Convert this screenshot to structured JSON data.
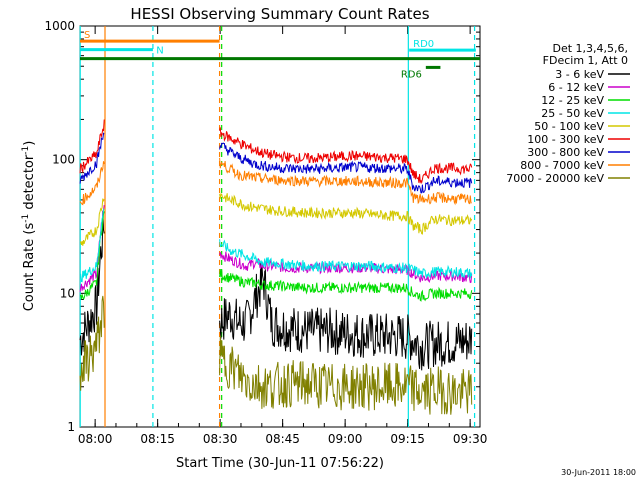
{
  "chart_data": {
    "type": "line",
    "title": "HESSI Observing Summary Count Rates",
    "xlabel": "Start Time (30-Jun-11 07:56:22)",
    "ylabel_main": "Count Rate (s",
    "ylabel_sup1": "-1",
    "ylabel_mid": " detector",
    "ylabel_sup2": "-1",
    "ylabel_end": ")",
    "yscale": "log",
    "ylim": [
      1,
      1000
    ],
    "xlim_minutes": [
      0,
      96
    ],
    "x_ticks": [
      "08:00",
      "08:15",
      "08:30",
      "08:45",
      "09:00",
      "09:15",
      "09:30"
    ],
    "x_tick_minutes": [
      3.633,
      18.633,
      33.633,
      48.633,
      63.633,
      78.633,
      93.633
    ],
    "y_ticks": [
      "1",
      "10",
      "100",
      "1000"
    ],
    "y_tick_values": [
      1,
      10,
      100,
      1000
    ],
    "footer_date": "30-Jun-2011 18:00",
    "legend": {
      "header_1": "Det 1,3,4,5,6,",
      "header_2": "FDecim 1, Att 0"
    },
    "series": [
      {
        "name": "3 - 6 keV",
        "color": "#000000",
        "points": [
          [
            0,
            4.5
          ],
          [
            4,
            8
          ],
          [
            5,
            20
          ],
          [
            5.8,
            35
          ],
          [
            33.5,
            6
          ],
          [
            36,
            7
          ],
          [
            38,
            6
          ],
          [
            40,
            6
          ],
          [
            42,
            9
          ],
          [
            44,
            13
          ],
          [
            46,
            6
          ],
          [
            50,
            5.5
          ],
          [
            55,
            5.2
          ],
          [
            60,
            5.2
          ],
          [
            65,
            5
          ],
          [
            70,
            4.8
          ],
          [
            75,
            4.8
          ],
          [
            78.5,
            4.7
          ],
          [
            80,
            4.5
          ],
          [
            82,
            4
          ],
          [
            85,
            4.2
          ],
          [
            90,
            4.3
          ],
          [
            94,
            4.5
          ]
        ]
      },
      {
        "name": "6 - 12 keV",
        "color": "#cc00cc",
        "points": [
          [
            0,
            11
          ],
          [
            4,
            14
          ],
          [
            5,
            30
          ],
          [
            5.8,
            45
          ],
          [
            33.5,
            20
          ],
          [
            36,
            18
          ],
          [
            38,
            17
          ],
          [
            40,
            16
          ],
          [
            42,
            17
          ],
          [
            44,
            16
          ],
          [
            46,
            16
          ],
          [
            50,
            15.5
          ],
          [
            55,
            15.5
          ],
          [
            60,
            15.5
          ],
          [
            65,
            15.5
          ],
          [
            70,
            15.5
          ],
          [
            75,
            15
          ],
          [
            78.5,
            15
          ],
          [
            80,
            14
          ],
          [
            82,
            13
          ],
          [
            85,
            13.5
          ],
          [
            90,
            13.5
          ],
          [
            94,
            13
          ]
        ]
      },
      {
        "name": "12 - 25 keV",
        "color": "#00dd00",
        "points": [
          [
            0,
            9
          ],
          [
            4,
            12
          ],
          [
            5,
            28
          ],
          [
            5.8,
            40
          ],
          [
            33.5,
            14
          ],
          [
            36,
            13
          ],
          [
            38,
            12.5
          ],
          [
            40,
            12
          ],
          [
            42,
            12
          ],
          [
            44,
            11.5
          ],
          [
            46,
            11.5
          ],
          [
            50,
            11.2
          ],
          [
            55,
            11
          ],
          [
            60,
            11
          ],
          [
            65,
            11
          ],
          [
            70,
            11
          ],
          [
            75,
            11
          ],
          [
            78.5,
            11
          ],
          [
            80,
            10
          ],
          [
            82,
            9.5
          ],
          [
            85,
            10
          ],
          [
            90,
            10
          ],
          [
            94,
            10
          ]
        ]
      },
      {
        "name": "25 - 50 keV",
        "color": "#00e5e5",
        "points": [
          [
            0,
            13
          ],
          [
            4,
            16
          ],
          [
            5,
            30
          ],
          [
            5.8,
            45
          ],
          [
            33.5,
            24
          ],
          [
            36,
            21
          ],
          [
            38,
            20
          ],
          [
            40,
            19
          ],
          [
            42,
            18
          ],
          [
            44,
            17
          ],
          [
            46,
            17
          ],
          [
            50,
            16.5
          ],
          [
            55,
            16
          ],
          [
            60,
            16
          ],
          [
            65,
            16
          ],
          [
            70,
            16
          ],
          [
            75,
            15.5
          ],
          [
            78.5,
            15.5
          ],
          [
            80,
            15
          ],
          [
            82,
            14
          ],
          [
            85,
            14.5
          ],
          [
            90,
            14.5
          ],
          [
            94,
            14
          ]
        ]
      },
      {
        "name": "50 - 100 keV",
        "color": "#d4c800",
        "points": [
          [
            0,
            23
          ],
          [
            4,
            30
          ],
          [
            5,
            42
          ],
          [
            5.8,
            55
          ],
          [
            33.5,
            55
          ],
          [
            36,
            50
          ],
          [
            38,
            48
          ],
          [
            40,
            45
          ],
          [
            42,
            44
          ],
          [
            44,
            43
          ],
          [
            46,
            42
          ],
          [
            50,
            41
          ],
          [
            55,
            40
          ],
          [
            60,
            40
          ],
          [
            65,
            40
          ],
          [
            70,
            39
          ],
          [
            75,
            38
          ],
          [
            78.5,
            38
          ],
          [
            80,
            32
          ],
          [
            82,
            30
          ],
          [
            85,
            36
          ],
          [
            90,
            35
          ],
          [
            94,
            35
          ]
        ]
      },
      {
        "name": "100 - 300 keV",
        "color": "#ee0000",
        "points": [
          [
            0,
            85
          ],
          [
            4,
            110
          ],
          [
            5,
            150
          ],
          [
            5.8,
            185
          ],
          [
            33.5,
            160
          ],
          [
            36,
            145
          ],
          [
            38,
            135
          ],
          [
            40,
            125
          ],
          [
            42,
            118
          ],
          [
            44,
            112
          ],
          [
            46,
            108
          ],
          [
            50,
            104
          ],
          [
            55,
            102
          ],
          [
            60,
            104
          ],
          [
            65,
            107
          ],
          [
            70,
            105
          ],
          [
            75,
            103
          ],
          [
            78.5,
            101
          ],
          [
            80,
            78
          ],
          [
            82,
            70
          ],
          [
            85,
            87
          ],
          [
            90,
            86
          ],
          [
            94,
            85
          ]
        ]
      },
      {
        "name": "300 - 800 keV",
        "color": "#0000cc",
        "points": [
          [
            0,
            70
          ],
          [
            4,
            95
          ],
          [
            5,
            130
          ],
          [
            5.8,
            160
          ],
          [
            33.5,
            130
          ],
          [
            36,
            115
          ],
          [
            38,
            105
          ],
          [
            40,
            98
          ],
          [
            42,
            93
          ],
          [
            44,
            90
          ],
          [
            46,
            88
          ],
          [
            50,
            86
          ],
          [
            55,
            85
          ],
          [
            60,
            86
          ],
          [
            65,
            88
          ],
          [
            70,
            87
          ],
          [
            75,
            86
          ],
          [
            78.5,
            85
          ],
          [
            80,
            63
          ],
          [
            82,
            60
          ],
          [
            85,
            69
          ],
          [
            90,
            68
          ],
          [
            94,
            67
          ]
        ]
      },
      {
        "name": "800 - 7000 keV",
        "color": "#ff7f00",
        "points": [
          [
            0,
            48
          ],
          [
            4,
            62
          ],
          [
            5,
            80
          ],
          [
            5.8,
            100
          ],
          [
            33.5,
            95
          ],
          [
            36,
            85
          ],
          [
            38,
            78
          ],
          [
            40,
            75
          ],
          [
            42,
            73
          ],
          [
            44,
            72
          ],
          [
            46,
            71
          ],
          [
            50,
            70
          ],
          [
            55,
            69
          ],
          [
            60,
            69
          ],
          [
            65,
            69
          ],
          [
            70,
            68
          ],
          [
            75,
            67
          ],
          [
            78.5,
            67
          ],
          [
            80,
            52
          ],
          [
            82,
            50
          ],
          [
            85,
            52
          ],
          [
            90,
            51
          ],
          [
            94,
            50
          ]
        ]
      },
      {
        "name": "7000 - 20000 keV",
        "color": "#808000",
        "points": [
          [
            0,
            2.6
          ],
          [
            4,
            4
          ],
          [
            5,
            6
          ],
          [
            5.8,
            8
          ],
          [
            33.5,
            3.2
          ],
          [
            36,
            2.9
          ],
          [
            38,
            2.5
          ],
          [
            40,
            2.2
          ],
          [
            45,
            2.0
          ],
          [
            50,
            2.1
          ],
          [
            55,
            2.1
          ],
          [
            60,
            2.0
          ],
          [
            65,
            2.0
          ],
          [
            70,
            2.0
          ],
          [
            75,
            2.0
          ],
          [
            78.5,
            2.0
          ],
          [
            82,
            1.8
          ],
          [
            86,
            1.9
          ],
          [
            90,
            1.8
          ],
          [
            94,
            1.8
          ]
        ]
      }
    ],
    "vertical_markers": [
      {
        "x_min": 0.05,
        "color": "#00e5e5",
        "style": "solid"
      },
      {
        "x_min": 6.0,
        "color": "#ff7f00",
        "style": "solid"
      },
      {
        "x_min": 17.5,
        "color": "#00e5e5",
        "style": "dashed"
      },
      {
        "x_min": 33.5,
        "color": "#ff7f00",
        "style": "dashed"
      },
      {
        "x_min": 34.0,
        "color": "#00dd00",
        "style": "dashed"
      },
      {
        "x_min": 78.8,
        "color": "#00e5e5",
        "style": "solid"
      },
      {
        "x_min": 94.7,
        "color": "#00e5e5",
        "style": "dashed"
      }
    ],
    "status_bars": [
      {
        "label": "S",
        "color": "#ff7f00",
        "x_start": 0,
        "x_end": 33.5,
        "y": 770,
        "label_anchor": "left"
      },
      {
        "label": "N",
        "color": "#00e5e5",
        "x_start": 0,
        "x_end": 17.5,
        "y": 665,
        "label_anchor": "left_mid"
      },
      {
        "label": "",
        "color": "#007700",
        "x_start": 0,
        "x_end": 96,
        "y": 570,
        "label_anchor": "none"
      },
      {
        "label": "RD0",
        "color": "#00e5e5",
        "x_start": 79,
        "x_end": 95,
        "y": 660,
        "label_anchor": "left"
      },
      {
        "label": "RD6",
        "color": "#007700",
        "x_start": 83,
        "x_end": 86.5,
        "y": 490,
        "label_anchor": "left_below"
      }
    ]
  }
}
